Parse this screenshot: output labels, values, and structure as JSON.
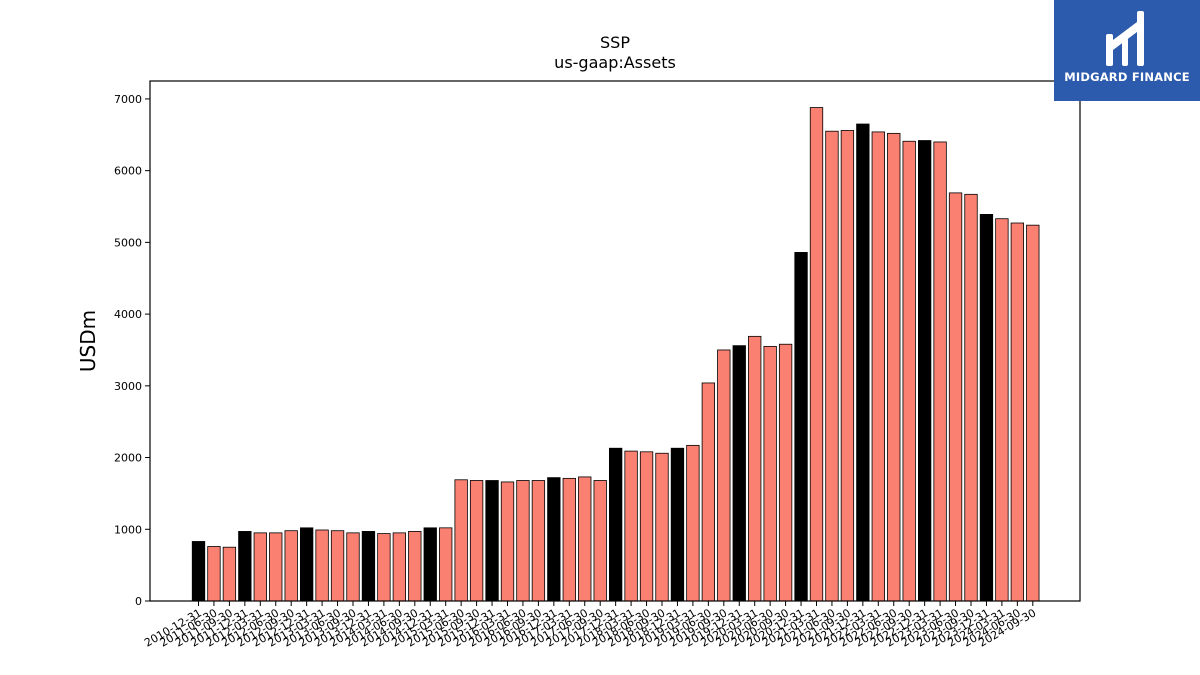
{
  "brand": {
    "name": "MIDGARD FINANCE",
    "logo_icon": "midgard-logo-icon",
    "background": "#2c5aad"
  },
  "chart_data": {
    "type": "bar",
    "title": "SSP",
    "subtitle": "us-gaap:Assets",
    "xlabel": "",
    "ylabel": "USDm",
    "ylim": [
      0,
      7250
    ],
    "yticks": [
      0,
      1000,
      2000,
      3000,
      4000,
      5000,
      6000,
      7000
    ],
    "grid": false,
    "colors": {
      "annual": "#000000",
      "quarterly": "#fa8072",
      "edge": "#000000"
    },
    "categories": [
      "2010-12-31",
      "2011-06-30",
      "2011-09-30",
      "2011-12-31",
      "2012-03-31",
      "2012-06-30",
      "2012-09-30",
      "2012-12-31",
      "2013-03-31",
      "2013-06-30",
      "2013-09-30",
      "2013-12-31",
      "2014-03-31",
      "2014-06-30",
      "2014-09-30",
      "2014-12-31",
      "2015-03-31",
      "2015-06-30",
      "2015-09-30",
      "2015-12-31",
      "2016-03-31",
      "2016-06-30",
      "2016-09-30",
      "2016-12-31",
      "2017-03-31",
      "2017-06-30",
      "2017-09-30",
      "2017-12-31",
      "2018-03-31",
      "2018-06-30",
      "2018-09-30",
      "2018-12-31",
      "2019-03-31",
      "2019-06-30",
      "2019-09-30",
      "2019-12-31",
      "2020-03-31",
      "2020-06-30",
      "2020-09-30",
      "2020-12-31",
      "2021-03-31",
      "2021-06-30",
      "2021-09-30",
      "2021-12-31",
      "2022-03-31",
      "2022-06-30",
      "2022-09-30",
      "2022-12-31",
      "2023-03-31",
      "2023-06-30",
      "2023-09-30",
      "2023-12-31",
      "2024-03-31",
      "2024-06-30",
      "2024-09-30"
    ],
    "values": [
      830,
      760,
      750,
      970,
      950,
      950,
      980,
      1020,
      990,
      980,
      950,
      970,
      940,
      950,
      970,
      1020,
      1020,
      1690,
      1680,
      1680,
      1660,
      1680,
      1680,
      1720,
      1710,
      1730,
      1680,
      2130,
      2090,
      2080,
      2060,
      2130,
      2170,
      3040,
      3500,
      3560,
      3690,
      3550,
      3580,
      4860,
      6880,
      6550,
      6560,
      6650,
      6540,
      6520,
      6410,
      6420,
      6400,
      5690,
      5670,
      5390,
      5330,
      5270,
      5240
    ],
    "annual_flags": [
      1,
      0,
      0,
      1,
      0,
      0,
      0,
      1,
      0,
      0,
      0,
      1,
      0,
      0,
      0,
      1,
      0,
      0,
      0,
      1,
      0,
      0,
      0,
      1,
      0,
      0,
      0,
      1,
      0,
      0,
      0,
      1,
      0,
      0,
      0,
      1,
      0,
      0,
      0,
      1,
      0,
      0,
      0,
      1,
      0,
      0,
      0,
      1,
      0,
      0,
      0,
      1,
      0,
      0,
      0
    ]
  }
}
